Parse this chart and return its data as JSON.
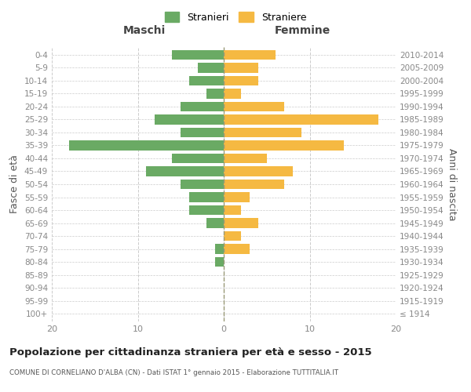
{
  "age_groups": [
    "100+",
    "95-99",
    "90-94",
    "85-89",
    "80-84",
    "75-79",
    "70-74",
    "65-69",
    "60-64",
    "55-59",
    "50-54",
    "45-49",
    "40-44",
    "35-39",
    "30-34",
    "25-29",
    "20-24",
    "15-19",
    "10-14",
    "5-9",
    "0-4"
  ],
  "birth_years": [
    "≤ 1914",
    "1915-1919",
    "1920-1924",
    "1925-1929",
    "1930-1934",
    "1935-1939",
    "1940-1944",
    "1945-1949",
    "1950-1954",
    "1955-1959",
    "1960-1964",
    "1965-1969",
    "1970-1974",
    "1975-1979",
    "1980-1984",
    "1985-1989",
    "1990-1994",
    "1995-1999",
    "2000-2004",
    "2005-2009",
    "2010-2014"
  ],
  "males": [
    0,
    0,
    0,
    0,
    1,
    1,
    0,
    2,
    4,
    4,
    5,
    9,
    6,
    18,
    5,
    8,
    5,
    2,
    4,
    3,
    6
  ],
  "females": [
    0,
    0,
    0,
    0,
    0,
    3,
    2,
    4,
    2,
    3,
    7,
    8,
    5,
    14,
    9,
    18,
    7,
    2,
    4,
    4,
    6
  ],
  "male_color": "#6aaa64",
  "female_color": "#f5b942",
  "bar_height": 0.75,
  "xlim": 20,
  "title": "Popolazione per cittadinanza straniera per età e sesso - 2015",
  "subtitle": "COMUNE DI CORNELIANO D'ALBA (CN) - Dati ISTAT 1° gennaio 2015 - Elaborazione TUTTITALIA.IT",
  "xlabel_left": "Maschi",
  "xlabel_right": "Femmine",
  "ylabel_left": "Fasce di età",
  "ylabel_right": "Anni di nascita",
  "legend_male": "Stranieri",
  "legend_female": "Straniere",
  "bg_color": "#ffffff",
  "grid_color": "#cccccc",
  "axis_label_color": "#555555",
  "tick_color": "#888888"
}
